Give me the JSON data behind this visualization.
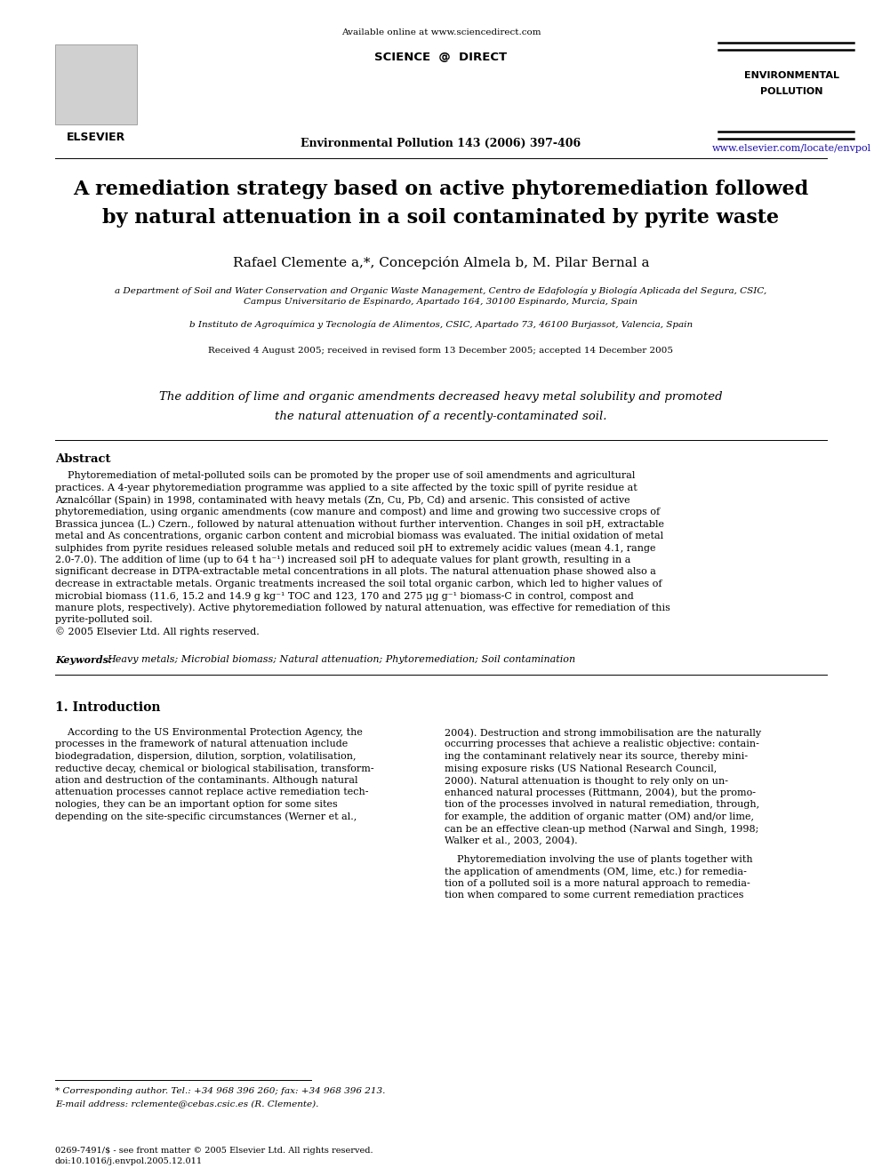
{
  "title_line1": "A remediation strategy based on active phytoremediation followed",
  "title_line2": "by natural attenuation in a soil contaminated by pyrite waste",
  "author_main": "Rafael Clemente ",
  "author_sups1": "a,*",
  "author_mid": ", Concepción Almela ",
  "author_sups2": "b",
  "author_end": ", M. Pilar Bernal ",
  "author_sups3": "a",
  "affil_a": "a Department of Soil and Water Conservation and Organic Waste Management, Centro de Edafología y Biología Aplicada del Segura, CSIC,\nCampus Universitario de Espinardo, Apartado 164, 30100 Espinardo, Murcia, Spain",
  "affil_b": "b Instituto de Agroquímica y Tecnología de Alimentos, CSIC, Apartado 73, 46100 Burjassot, Valencia, Spain",
  "received": "Received 4 August 2005; received in revised form 13 December 2005; accepted 14 December 2005",
  "highlight_line1": "The addition of lime and organic amendments decreased heavy metal solubility and promoted",
  "highlight_line2": "the natural attenuation of a recently-contaminated soil.",
  "abstract_title": "Abstract",
  "abstract_text": "    Phytoremediation of metal-polluted soils can be promoted by the proper use of soil amendments and agricultural practices. A 4-year phytoremediation programme was applied to a site affected by the toxic spill of pyrite residue at Aznalcóllar (Spain) in 1998, contaminated with heavy metals (Zn, Cu, Pb, Cd) and arsenic. This consisted of active phytoremediation, using organic amendments (cow manure and compost) and lime and growing two successive crops of Brassica juncea (L.) Czern., followed by natural attenuation without further intervention. Changes in soil pH, extractable metal and As concentrations, organic carbon content and microbial biomass was evaluated. The initial oxidation of metal sulphides from pyrite residues released soluble metals and reduced soil pH to extremely acidic values (mean 4.1, range 2.0-7.0). The addition of lime (up to 64 t ha⁻¹) increased soil pH to adequate values for plant growth, resulting in a significant decrease in DTPA-extractable metal concentrations in all plots. The natural attenuation phase showed also a decrease in extractable metals. Organic treatments increased the soil total organic carbon, which led to higher values of microbial biomass (11.6, 15.2 and 14.9 g kg⁻¹ TOC and 123, 170 and 275 μg g⁻¹ biomass-C in control, compost and manure plots, respectively). Active phytoremediation followed by natural attenuation, was effective for remediation of this pyrite-polluted soil.\n© 2005 Elsevier Ltd. All rights reserved.",
  "keywords": "Keywords: Heavy metals; Microbial biomass; Natural attenuation; Phytoremediation; Soil contamination",
  "section1_title": "1. Introduction",
  "col1_para1": "    According to the US Environmental Protection Agency, the processes in the framework of natural attenuation include biodegradation, dispersion, dilution, sorption, volatilisation, reductive decay, chemical or biological stabilisation, transformation and destruction of the contaminants. Although natural attenuation processes cannot replace active remediation technologies, they can be an important option for some sites depending on the site-specific circumstances (Werner et al.,",
  "col2_para1": "2004). Destruction and strong immobilisation are the naturally occurring processes that achieve a realistic objective: containing the contaminant relatively near its source, thereby minimising exposure risks (US National Research Council, 2000). Natural attenuation is thought to rely only on unenhanced natural processes (Rittmann, 2004), but the promotion of the processes involved in natural remediation, through, for example, the addition of organic matter (OM) and/or lime, can be an effective clean-up method (Narwal and Singh, 1998; Walker et al., 2003, 2004).",
  "col2_para2": "    Phytoremediation involving the use of plants together with the application of amendments (OM, lime, etc.) for remediation of a polluted soil is a more natural approach to remediation when compared to some current remediation practices",
  "header_available": "Available online at www.sciencedirect.com",
  "header_scidir": "SCIENCE   @   DIRECT",
  "header_journal": "Environmental Pollution 143 (2006) 397-406",
  "header_ep_line1": "ENVIRONMENTAL",
  "header_ep_line2": "POLLUTION",
  "header_url": "www.elsevier.com/locate/envpol",
  "elsevier_text": "ELSEVIER",
  "footer_text": "0269-7491/$ - see front matter © 2005 Elsevier Ltd. All rights reserved.\ndoi:10.1016/j.envpol.2005.12.011",
  "corresp_line1": "* Corresponding author. Tel.: +34 968 396 260; fax: +34 968 396 213.",
  "corresp_line2": "E-mail address: rclemente@cebas.csic.es (R. Clemente).",
  "bg_color": "#ffffff",
  "text_color": "#000000",
  "link_color": "#1a0dab",
  "title_color": "#000000",
  "line_color": "#000000"
}
